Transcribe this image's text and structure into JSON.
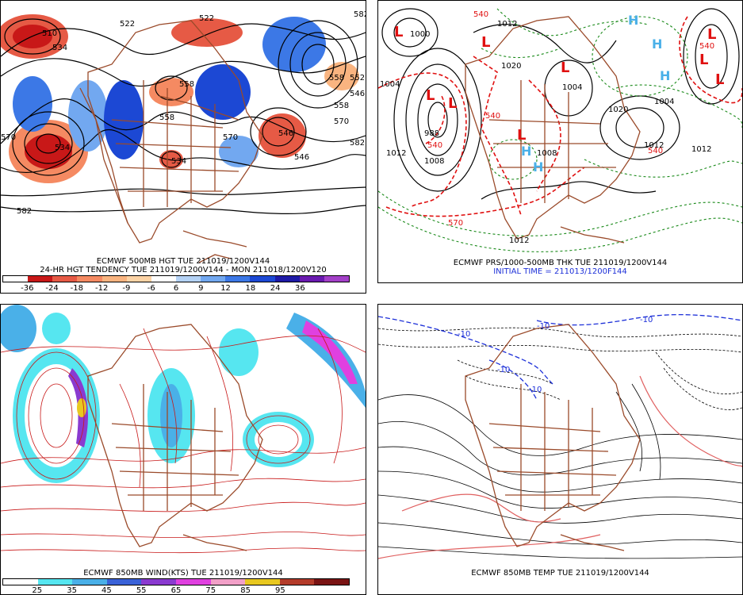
{
  "panels": {
    "hgt": {
      "caption1": "ECMWF 500MB HGT TUE 211019/1200V144",
      "caption2": "24-HR HGT TENDENCY TUE 211019/1200V144 - MON 211018/1200V120",
      "colorbar_colors": [
        "#ffffff",
        "#c81818",
        "#e65a45",
        "#f58a62",
        "#f9b480",
        "#fcd3a5",
        "#ffffff",
        "#b4d2f5",
        "#72a8f0",
        "#3c78e6",
        "#1c48d4",
        "#1e1aa6",
        "#6a1ab0",
        "#a340c8"
      ],
      "colorbar_labels": [
        "-36",
        "-24",
        "-18",
        "-12",
        "-9",
        "-6",
        "6",
        "9",
        "12",
        "18",
        "24",
        "36"
      ],
      "contour_labels": [
        "510",
        "522",
        "534",
        "522",
        "558",
        "570",
        "546",
        "534",
        "558",
        "546",
        "534",
        "558",
        "582",
        "570",
        "582",
        "570",
        "546",
        "558",
        "582",
        "552"
      ]
    },
    "prs": {
      "caption1": "ECMWF PRS/1000-500MB THK TUE 211019/1200V144",
      "caption2": "INITIAL TIME = 211013/1200F144",
      "low_marks": [
        "L",
        "L",
        "L",
        "L",
        "L",
        "L",
        "L",
        "L",
        "L"
      ],
      "high_marks": [
        "H",
        "H",
        "H",
        "H",
        "H"
      ],
      "pressure_labels": [
        "1004",
        "988",
        "1008",
        "1012",
        "1020",
        "1004",
        "1012",
        "1004",
        "1012",
        "1020",
        "1012",
        "1008",
        "1012",
        "1000"
      ],
      "thickness_labels": [
        "540",
        "540",
        "570",
        "540",
        "540",
        "540"
      ]
    },
    "wind": {
      "caption1": "ECMWF 850MB WIND(KTS) TUE 211019/1200V144",
      "colorbar_colors": [
        "#ffffff",
        "#56e6f0",
        "#4ab0e8",
        "#3a62d8",
        "#8a3ad0",
        "#e040e0",
        "#f2a0c8",
        "#e8c820",
        "#b43c2a",
        "#7a1414"
      ],
      "colorbar_labels": [
        "25",
        "35",
        "45",
        "55",
        "65",
        "75",
        "85",
        "95"
      ]
    },
    "temp": {
      "caption1": "ECMWF 850MB TEMP TUE 211019/1200V144",
      "blue_labels": [
        "-10",
        "-10",
        "-10",
        "-10",
        "-10"
      ]
    }
  },
  "colors": {
    "land": "#9a4a2a",
    "contour": "#000000",
    "thickness": "#e01010",
    "pressure_green": "#1a8a1a",
    "wind_lines": "#c81818",
    "temp_blue": "#1c2fd8",
    "temp_pink": "#e06060"
  }
}
